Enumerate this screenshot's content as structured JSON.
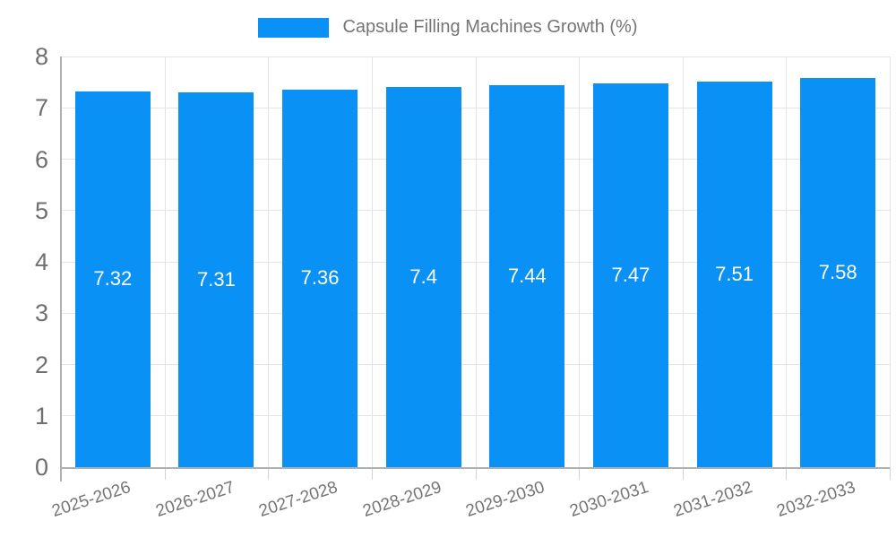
{
  "legend": {
    "label": "Capsule Filling Machines Growth (%)"
  },
  "chart_data": {
    "type": "bar",
    "title": "Capsule Filling Machines Growth (%)",
    "categories": [
      "2025-2026",
      "2026-2027",
      "2027-2028",
      "2028-2029",
      "2029-2030",
      "2030-2031",
      "2031-2032",
      "2032-2033"
    ],
    "values": [
      7.32,
      7.31,
      7.36,
      7.4,
      7.44,
      7.47,
      7.51,
      7.58
    ],
    "value_labels": [
      "7.32",
      "7.31",
      "7.36",
      "7.4",
      "7.44",
      "7.47",
      "7.51",
      "7.58"
    ],
    "xlabel": "",
    "ylabel": "",
    "ylim": [
      0,
      8
    ],
    "yticks": [
      0,
      1,
      2,
      3,
      4,
      5,
      6,
      7,
      8
    ],
    "grid": true,
    "legend_position": "top",
    "bar_color": "#0991f5",
    "value_label_color": "#ffffff",
    "axis_text_color": "#757575"
  }
}
